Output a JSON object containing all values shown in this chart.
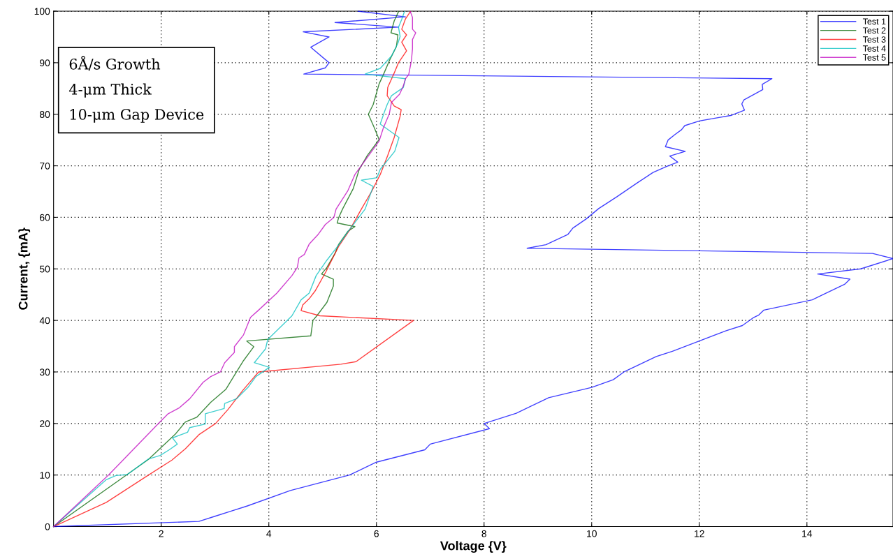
{
  "chart_data": {
    "type": "line",
    "xlabel": "Voltage {V}",
    "ylabel": "Current, {mA}",
    "xlim": [
      0,
      15.6
    ],
    "ylim": [
      0,
      100
    ],
    "xticks": [
      2,
      4,
      6,
      8,
      10,
      12,
      14
    ],
    "yticks": [
      0,
      10,
      20,
      30,
      40,
      50,
      60,
      70,
      80,
      90,
      100
    ],
    "grid": true,
    "legend": "top right",
    "line_style": "solid",
    "marker": "none",
    "annotations": [
      "6Å/s Growth",
      "4-μm Thick",
      "10-μm Gap Device"
    ],
    "series": [
      {
        "name": "Test 1",
        "color": "#0000ff",
        "x": [
          0,
          2.7,
          3.0,
          3.3,
          3.6,
          4.4,
          5.5,
          6.0,
          6.9,
          7.0,
          8.1,
          8.0,
          8.6,
          9.1,
          9.2,
          10.0,
          10.4,
          10.6,
          11.2,
          11.5,
          12.0,
          12.5,
          12.8,
          13.0,
          13.1,
          13.2,
          14.1,
          14.3,
          14.7,
          14.8,
          14.2,
          15.0,
          15.6,
          15.22,
          8.8,
          9.15,
          9.56,
          9.65,
          9.9,
          10.13,
          10.47,
          10.85,
          11.14,
          11.42,
          11.6,
          11.45,
          11.74,
          11.37,
          11.42,
          11.54,
          11.67,
          11.73,
          12.0,
          12.6,
          12.84,
          12.79,
          12.83,
          13.18,
          13.17,
          13.35,
          4.65,
          5.05,
          5.12,
          4.78,
          5.12,
          4.64,
          6.41,
          5.23,
          6.54,
          5.66
        ],
        "values": [
          0,
          1,
          2,
          3,
          4,
          7,
          10,
          12.5,
          14.9,
          16,
          19,
          20,
          22,
          24.5,
          25,
          27,
          28.5,
          30,
          33,
          34,
          36,
          38,
          39,
          40.5,
          41,
          42,
          44,
          45,
          47,
          48,
          49,
          50,
          52,
          53,
          54,
          54.7,
          56.7,
          57.9,
          59.7,
          61.7,
          64,
          66.7,
          68.7,
          70,
          70.7,
          71.9,
          72.8,
          73.7,
          75,
          76,
          77,
          77.8,
          78.7,
          79.8,
          80.8,
          82,
          82.8,
          84.8,
          85.8,
          86.9,
          87.8,
          89,
          90,
          93,
          95,
          96,
          96.9,
          97.8,
          98.9,
          100
        ]
      },
      {
        "name": "Test 2",
        "color": "#006400",
        "x": [
          0,
          1.76,
          2.26,
          2.45,
          2.66,
          2.92,
          3.2,
          3.37,
          3.53,
          3.72,
          3.59,
          4.78,
          4.82,
          4.9,
          5.08,
          5.2,
          5.2,
          4.98,
          5.08,
          5.23,
          5.3,
          5.47,
          5.6,
          5.27,
          5.3,
          5.37,
          5.57,
          5.68,
          5.83,
          6.05,
          5.96,
          5.85,
          5.94,
          6.05,
          6.13,
          6.24,
          6.37,
          6.4,
          6.27,
          6.33,
          6.41
        ],
        "values": [
          0,
          13,
          17.9,
          20.3,
          21.2,
          24.1,
          26.6,
          29.5,
          32.2,
          34.9,
          36,
          37,
          40,
          41,
          43.5,
          46.7,
          48,
          49,
          50.3,
          53,
          54.8,
          57.3,
          58.2,
          58.9,
          60,
          61.6,
          65.6,
          69.3,
          72,
          75.1,
          77.4,
          80,
          81.9,
          85.9,
          87.7,
          90.4,
          93.1,
          95.4,
          95.8,
          98.1,
          99.9
        ]
      },
      {
        "name": "Test 3",
        "color": "#ff0000",
        "x": [
          0,
          0.98,
          1.72,
          2.2,
          2.45,
          2.71,
          3.01,
          3.24,
          3.53,
          3.81,
          5.34,
          5.62,
          6.69,
          4.95,
          4.6,
          4.63,
          4.75,
          4.86,
          5.08,
          5.12,
          5.3,
          5.5,
          5.72,
          5.92,
          6.07,
          6.21,
          6.33,
          6.44,
          6.46,
          6.33,
          6.2,
          6.21,
          6.33,
          6.41,
          6.56,
          6.47,
          6.56,
          6.47,
          6.54,
          6.63
        ],
        "values": [
          0,
          4.7,
          9.7,
          12.9,
          15.1,
          17.9,
          20,
          22.7,
          26.6,
          30,
          31.5,
          32,
          40,
          40.9,
          41.9,
          43,
          44.2,
          45.7,
          49.8,
          50.7,
          54.4,
          57.5,
          61.6,
          65.2,
          68.3,
          72,
          75.5,
          79.6,
          80.9,
          81.6,
          83.6,
          85.2,
          88,
          90,
          92.3,
          94,
          95.4,
          96.5,
          98.5,
          99.9
        ]
      },
      {
        "name": "Test 4",
        "color": "#00bfbf",
        "x": [
          0,
          0.98,
          1.16,
          1.37,
          1.76,
          1.98,
          2.15,
          2.3,
          2.21,
          2.49,
          2.53,
          2.82,
          2.82,
          3.17,
          3.18,
          3.4,
          3.62,
          3.76,
          4.01,
          3.73,
          3.94,
          3.98,
          4.43,
          4.6,
          4.75,
          4.88,
          5.08,
          5.31,
          5.49,
          5.79,
          5.94,
          5.72,
          6.01,
          6.07,
          6.34,
          6.42,
          6.07,
          6.15,
          6.2,
          6.28,
          6.5,
          6.54,
          5.79,
          6.07,
          6.28,
          6.4,
          6.44,
          6.41,
          6.47,
          6.52
        ],
        "values": [
          0,
          9.1,
          9.9,
          10.1,
          13.1,
          13.8,
          14.9,
          16,
          17.2,
          18.3,
          19.2,
          19.9,
          21.9,
          22.9,
          23.9,
          24.8,
          27.1,
          29.1,
          30.9,
          31.8,
          34.5,
          36.3,
          40.9,
          44,
          45.3,
          48.7,
          51.7,
          54.8,
          57.5,
          61.6,
          66,
          67.2,
          67.7,
          69.3,
          72.8,
          75.5,
          78.1,
          80.5,
          81.9,
          83.6,
          85.2,
          86.9,
          87.8,
          88.9,
          91.3,
          93.8,
          95.1,
          96.9,
          98.4,
          99.9
        ]
      },
      {
        "name": "Test 5",
        "color": "#bf00bf",
        "x": [
          0,
          1.03,
          1.95,
          2.13,
          2.33,
          2.53,
          2.78,
          2.92,
          3.1,
          3.18,
          3.36,
          3.36,
          3.53,
          3.66,
          3.81,
          4.15,
          4.43,
          4.53,
          4.56,
          4.66,
          4.75,
          4.91,
          5.05,
          5.21,
          5.25,
          5.47,
          5.6,
          5.76,
          6.05,
          6.13,
          6.24,
          6.28,
          6.43,
          6.5,
          6.54,
          6.6,
          6.65,
          6.67,
          6.67,
          6.73,
          6.67,
          6.67,
          6.63
        ],
        "values": [
          0,
          10.1,
          20,
          21.9,
          23,
          24.8,
          28,
          29.1,
          30,
          31.8,
          33.8,
          34.9,
          37.2,
          40.6,
          42,
          45.3,
          48.7,
          50.3,
          52.1,
          52.8,
          54.8,
          56.6,
          58.6,
          60,
          61.6,
          65.2,
          68.3,
          70.6,
          74.8,
          77.4,
          80.1,
          82.3,
          83.9,
          85.5,
          86.9,
          87.7,
          90.4,
          92.7,
          94.5,
          95.8,
          96.5,
          98.8,
          99.9
        ]
      }
    ]
  }
}
